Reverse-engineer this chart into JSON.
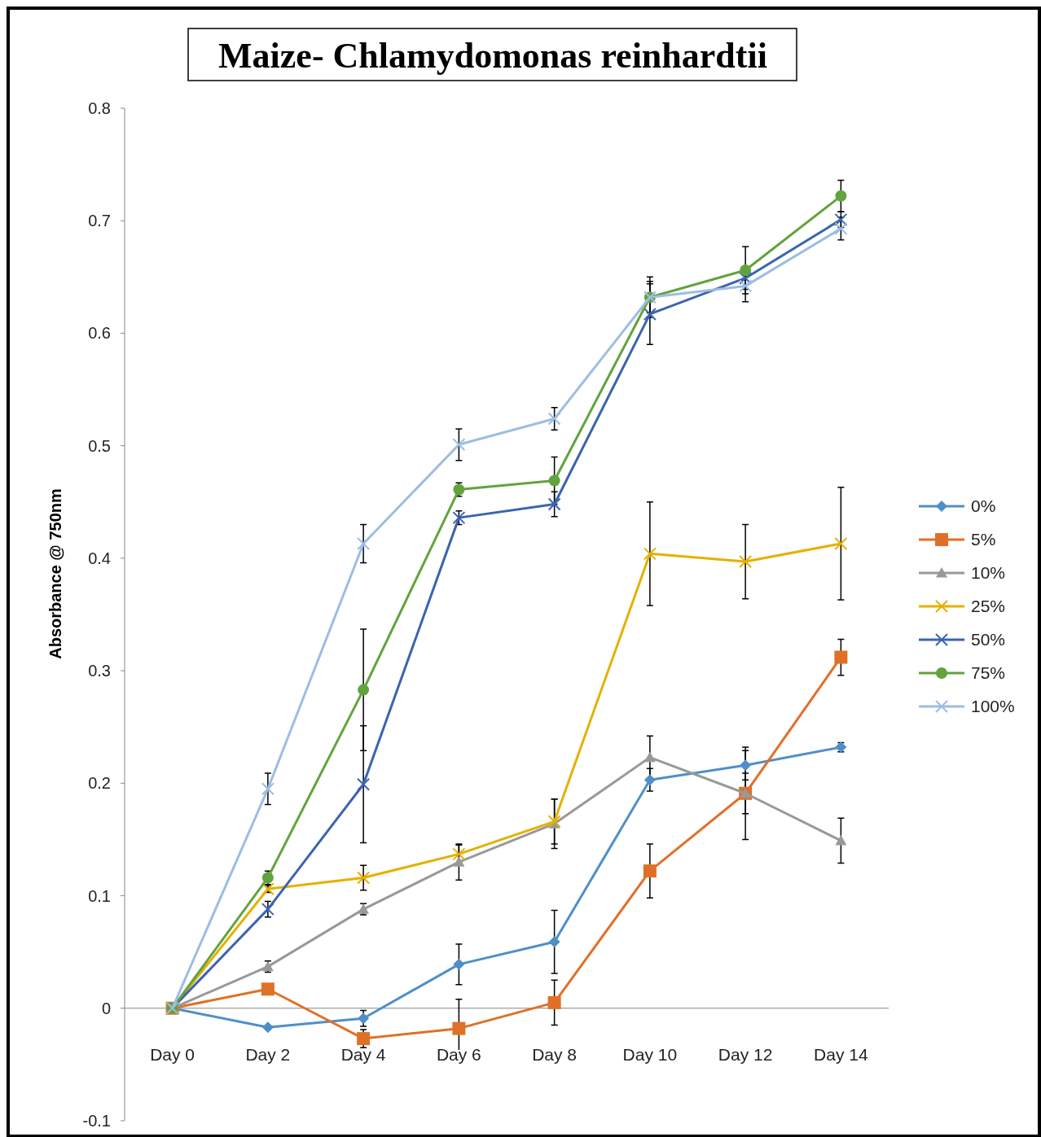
{
  "chart_data": {
    "type": "line",
    "title": "Maize- Chlamydomonas reinhardtii",
    "ylabel": "Absorbance @ 750nm",
    "categories": [
      "Day 0",
      "Day 2",
      "Day 4",
      "Day 6",
      "Day 8",
      "Day 10",
      "Day 12",
      "Day 14"
    ],
    "ylim": [
      -0.1,
      0.8
    ],
    "yticks": [
      -0.1,
      0,
      0.1,
      0.2,
      0.3,
      0.4,
      0.5,
      0.6,
      0.7,
      0.8
    ],
    "grid": false,
    "legend": "right",
    "series": [
      {
        "name": "0%",
        "color": "#4f8fc9",
        "marker": "diamond",
        "values": [
          0,
          -0.017,
          -0.009,
          0.039,
          0.059,
          0.203,
          0.216,
          0.232
        ],
        "errors": [
          null,
          null,
          0.007,
          0.018,
          0.028,
          0.01,
          0.013,
          0.004
        ]
      },
      {
        "name": "5%",
        "color": "#e07028",
        "marker": "square",
        "values": [
          0,
          0.017,
          -0.027,
          -0.018,
          0.005,
          0.122,
          0.191,
          0.312
        ],
        "errors": [
          null,
          null,
          0.008,
          0.026,
          0.02,
          0.024,
          0.018,
          0.016
        ]
      },
      {
        "name": "10%",
        "color": "#999999",
        "marker": "triangle",
        "values": [
          0,
          0.037,
          0.088,
          0.13,
          0.164,
          0.223,
          0.191,
          0.149
        ],
        "errors": [
          null,
          0.005,
          0.005,
          0.016,
          0.022,
          0.019,
          0.041,
          0.02
        ]
      },
      {
        "name": "25%",
        "color": "#e6b000",
        "marker": "cross",
        "values": [
          0,
          0.106,
          0.116,
          0.137,
          0.166,
          0.404,
          0.397,
          0.413
        ],
        "errors": [
          null,
          0.003,
          0.011,
          0.008,
          0.02,
          0.046,
          0.033,
          0.05
        ]
      },
      {
        "name": "50%",
        "color": "#3b64b0",
        "marker": "cross",
        "values": [
          0,
          0.088,
          0.199,
          0.436,
          0.448,
          0.617,
          0.649,
          0.701
        ],
        "errors": [
          null,
          0.007,
          0.052,
          0.006,
          0.011,
          0.027,
          0.01,
          0.007
        ]
      },
      {
        "name": "75%",
        "color": "#63a33e",
        "marker": "circle",
        "values": [
          0,
          0.116,
          0.283,
          0.461,
          0.469,
          0.632,
          0.656,
          0.722
        ],
        "errors": [
          null,
          0.006,
          0.054,
          0.006,
          0.021,
          0.014,
          0.021,
          0.014
        ]
      },
      {
        "name": "100%",
        "color": "#9dbde3",
        "marker": "cross",
        "values": [
          0,
          0.195,
          0.413,
          0.501,
          0.524,
          0.632,
          0.642,
          0.693
        ],
        "errors": [
          null,
          0.014,
          0.017,
          0.014,
          0.01,
          0.018,
          0.014,
          0.01
        ]
      }
    ]
  }
}
